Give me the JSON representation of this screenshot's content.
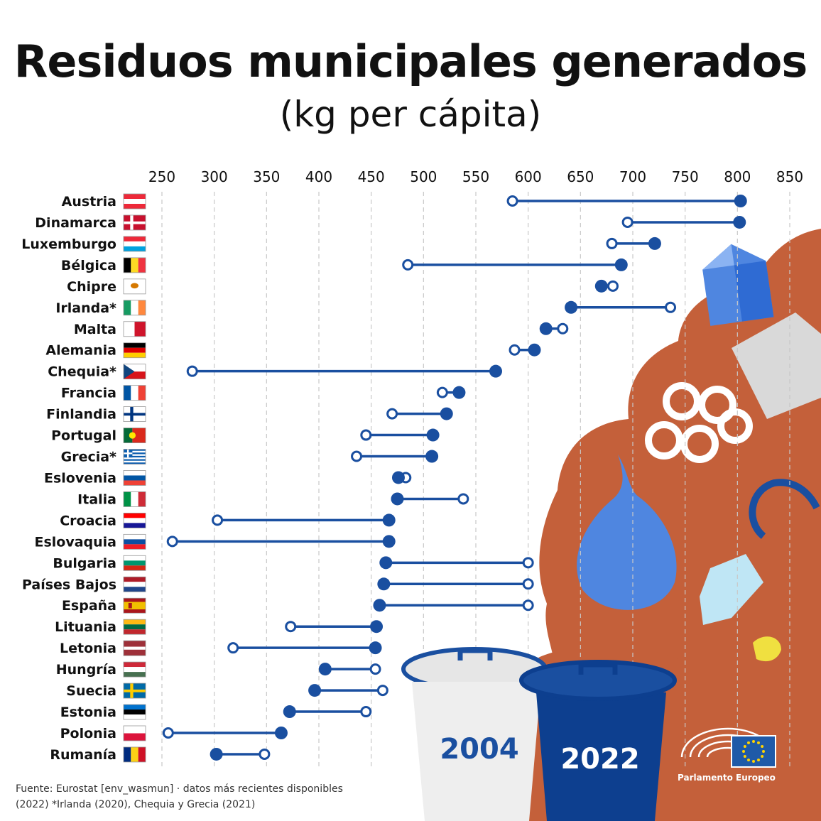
{
  "title": "Residuos municipales generados",
  "subtitle": "(kg per cápita)",
  "footer": {
    "line1": "Fuente: Eurostat [env_wasmun] · datos más recientes disponibles",
    "line2": "(2022) *Irlanda (2020), Chequia y Grecia (2021)"
  },
  "legend": {
    "label_2004": "2004",
    "label_2022": "2022"
  },
  "logo": {
    "label": "Parlamento Europeo"
  },
  "colors": {
    "series": "#1a4fa0",
    "dark_blue": "#0d3f8f",
    "blob": "#c4603a",
    "grid": "#c8c8c8",
    "text": "#111111",
    "eu_blue": "#1f5aa8",
    "eu_star": "#ffd200"
  },
  "chart_data": {
    "type": "dumbbell",
    "orientation": "horizontal",
    "x_ticks": [
      250,
      300,
      350,
      400,
      450,
      500,
      550,
      600,
      650,
      700,
      750,
      800,
      850
    ],
    "xlim": [
      250,
      850
    ],
    "grid": true,
    "series": [
      {
        "name": "2004",
        "marker": "open-circle"
      },
      {
        "name": "2022",
        "marker": "filled-circle"
      }
    ],
    "categories": [
      {
        "country": "Austria",
        "v2004": 585,
        "v2022": 803
      },
      {
        "country": "Dinamarca",
        "v2004": 695,
        "v2022": 802
      },
      {
        "country": "Luxemburgo",
        "v2004": 680,
        "v2022": 721
      },
      {
        "country": "Bélgica",
        "v2004": 485,
        "v2022": 689
      },
      {
        "country": "Chipre",
        "v2004": 681,
        "v2022": 670
      },
      {
        "country": "Irlanda*",
        "v2004": 736,
        "v2022": 641
      },
      {
        "country": "Malta",
        "v2004": 633,
        "v2022": 617
      },
      {
        "country": "Alemania",
        "v2004": 587,
        "v2022": 606
      },
      {
        "country": "Chequia*",
        "v2004": 279,
        "v2022": 569
      },
      {
        "country": "Francia",
        "v2004": 518,
        "v2022": 534
      },
      {
        "country": "Finlandia",
        "v2004": 470,
        "v2022": 522
      },
      {
        "country": "Portugal",
        "v2004": 445,
        "v2022": 509
      },
      {
        "country": "Grecia*",
        "v2004": 436,
        "v2022": 508
      },
      {
        "country": "Eslovenia",
        "v2004": 483,
        "v2022": 476
      },
      {
        "country": "Italia",
        "v2004": 538,
        "v2022": 475
      },
      {
        "country": "Croacia",
        "v2004": 303,
        "v2022": 467
      },
      {
        "country": "Eslovaquia",
        "v2004": 260,
        "v2022": 467
      },
      {
        "country": "Bulgaria",
        "v2004": 600,
        "v2022": 464
      },
      {
        "country": "Países Bajos",
        "v2004": 600,
        "v2022": 462
      },
      {
        "country": "España",
        "v2004": 600,
        "v2022": 458
      },
      {
        "country": "Lituania",
        "v2004": 373,
        "v2022": 455
      },
      {
        "country": "Letonia",
        "v2004": 318,
        "v2022": 454
      },
      {
        "country": "Hungría",
        "v2004": 454,
        "v2022": 406
      },
      {
        "country": "Suecia",
        "v2004": 461,
        "v2022": 396
      },
      {
        "country": "Estonia",
        "v2004": 445,
        "v2022": 372
      },
      {
        "country": "Polonia",
        "v2004": 256,
        "v2022": 364
      },
      {
        "country": "Rumanía",
        "v2004": 348,
        "v2022": 302
      }
    ],
    "flags": {
      "Austria": {
        "type": "h",
        "colors": [
          "#ed2939",
          "#ffffff",
          "#ed2939"
        ]
      },
      "Dinamarca": {
        "type": "nordic",
        "colors": [
          "#c8102e",
          "#ffffff"
        ]
      },
      "Luxemburgo": {
        "type": "h",
        "colors": [
          "#ed2939",
          "#ffffff",
          "#00a1de"
        ]
      },
      "Bélgica": {
        "type": "v",
        "colors": [
          "#000000",
          "#fdda24",
          "#ef3340"
        ]
      },
      "Chipre": {
        "type": "cyprus",
        "colors": [
          "#ffffff",
          "#d57800"
        ]
      },
      "Irlanda*": {
        "type": "v",
        "colors": [
          "#169b62",
          "#ffffff",
          "#ff883e"
        ]
      },
      "Malta": {
        "type": "v",
        "colors": [
          "#ffffff",
          "#cf142b"
        ]
      },
      "Alemania": {
        "type": "h",
        "colors": [
          "#000000",
          "#dd0000",
          "#ffce00"
        ]
      },
      "Chequia*": {
        "type": "czech",
        "colors": [
          "#ffffff",
          "#d7141a",
          "#11457e"
        ]
      },
      "Francia": {
        "type": "v",
        "colors": [
          "#0055a4",
          "#ffffff",
          "#ef4135"
        ]
      },
      "Finlandia": {
        "type": "nordic",
        "colors": [
          "#ffffff",
          "#003580"
        ]
      },
      "Portugal": {
        "type": "portugal",
        "colors": [
          "#046a38",
          "#da291c",
          "#ffe900"
        ]
      },
      "Grecia*": {
        "type": "greece",
        "colors": [
          "#0d5eaf",
          "#ffffff"
        ]
      },
      "Eslovenia": {
        "type": "h",
        "colors": [
          "#ffffff",
          "#0055a4",
          "#ef4135"
        ]
      },
      "Italia": {
        "type": "v",
        "colors": [
          "#009246",
          "#ffffff",
          "#ce2b37"
        ]
      },
      "Croacia": {
        "type": "h",
        "colors": [
          "#ff0000",
          "#ffffff",
          "#171796"
        ]
      },
      "Eslovaquia": {
        "type": "h",
        "colors": [
          "#ffffff",
          "#0b4ea2",
          "#ee1c25"
        ]
      },
      "Bulgaria": {
        "type": "h",
        "colors": [
          "#ffffff",
          "#00966e",
          "#d62612"
        ]
      },
      "Países Bajos": {
        "type": "h",
        "colors": [
          "#ae1c28",
          "#ffffff",
          "#21468b"
        ]
      },
      "España": {
        "type": "spain",
        "colors": [
          "#aa151b",
          "#f1bf00"
        ]
      },
      "Lituania": {
        "type": "h",
        "colors": [
          "#fdb913",
          "#006a44",
          "#c1272d"
        ]
      },
      "Letonia": {
        "type": "latvia",
        "colors": [
          "#9e3039",
          "#ffffff"
        ]
      },
      "Hungría": {
        "type": "h",
        "colors": [
          "#ce2939",
          "#ffffff",
          "#477050"
        ]
      },
      "Suecia": {
        "type": "nordic",
        "colors": [
          "#006aa7",
          "#fecc00"
        ]
      },
      "Estonia": {
        "type": "h",
        "colors": [
          "#0072ce",
          "#000000",
          "#ffffff"
        ]
      },
      "Polonia": {
        "type": "h",
        "colors": [
          "#ffffff",
          "#dc143c"
        ]
      },
      "Rumanía": {
        "type": "v",
        "colors": [
          "#002b7f",
          "#fcd116",
          "#ce1126"
        ]
      }
    }
  }
}
